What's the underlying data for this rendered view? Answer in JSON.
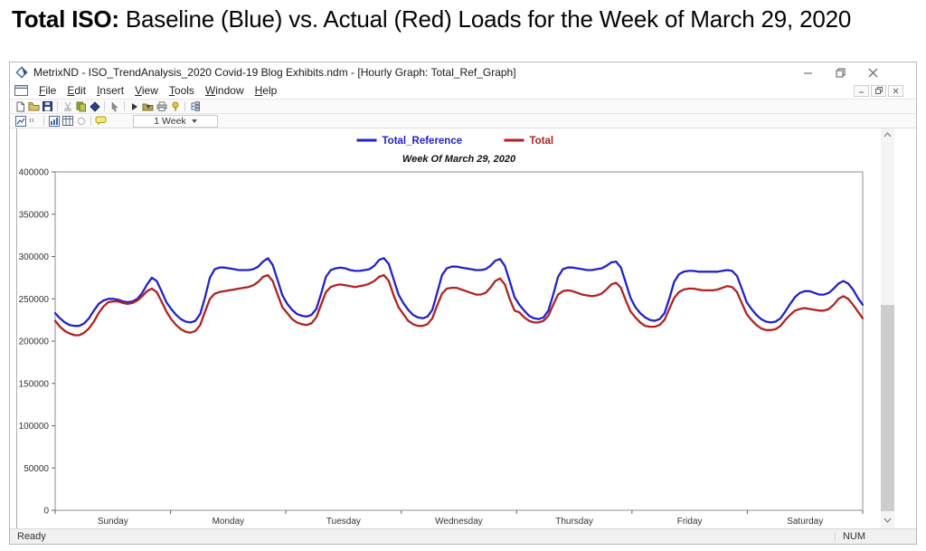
{
  "headline": {
    "bold": "Total ISO:",
    "rest": " Baseline (Blue) vs. Actual (Red) Loads for the Week of March 29, 2020"
  },
  "window": {
    "title": "MetrixND - ISO_TrendAnalysis_2020 Covid-19 Blog Exhibits.ndm - [Hourly Graph: Total_Ref_Graph]",
    "menu": [
      "File",
      "Edit",
      "Insert",
      "View",
      "Tools",
      "Window",
      "Help"
    ],
    "toolbar": {
      "range_value": "1 Week"
    },
    "status": {
      "left": "Ready",
      "right": "NUM"
    }
  },
  "chart_data": {
    "type": "line",
    "title": "Week Of March 29, 2020",
    "xlabel": "",
    "ylabel": "",
    "categories": [
      "Sunday",
      "Monday",
      "Tuesday",
      "Wednesday",
      "Thursday",
      "Friday",
      "Saturday"
    ],
    "hours_per_day": 24,
    "x_unit": "hour",
    "ylim": [
      0,
      400000
    ],
    "yticks": [
      0,
      50000,
      100000,
      150000,
      200000,
      250000,
      300000,
      350000,
      400000
    ],
    "grid": false,
    "legend_position": "top-center",
    "colors": {
      "baseline_blue": "#2222cc",
      "actual_red": "#b22222"
    },
    "series": [
      {
        "name": "Total_Reference",
        "color": "#2222cc",
        "values": [
          233000,
          227000,
          222000,
          219000,
          218000,
          218000,
          221000,
          227000,
          236000,
          244000,
          248000,
          250000,
          250000,
          249000,
          247000,
          246000,
          247000,
          250000,
          257000,
          267000,
          275000,
          271000,
          259000,
          246000,
          238000,
          231000,
          226000,
          223000,
          222000,
          224000,
          232000,
          252000,
          275000,
          285000,
          287000,
          287000,
          286000,
          285000,
          284000,
          284000,
          284000,
          285000,
          288000,
          294000,
          298000,
          290000,
          272000,
          254000,
          244000,
          237000,
          232000,
          230000,
          229000,
          231000,
          238000,
          256000,
          276000,
          284000,
          286000,
          287000,
          286000,
          284000,
          283000,
          283000,
          284000,
          285000,
          289000,
          296000,
          298000,
          291000,
          273000,
          255000,
          245000,
          237000,
          231000,
          228000,
          227000,
          229000,
          237000,
          257000,
          278000,
          286000,
          288000,
          288000,
          287000,
          286000,
          285000,
          284000,
          284000,
          285000,
          289000,
          295000,
          297000,
          289000,
          271000,
          252000,
          243000,
          236000,
          230000,
          227000,
          226000,
          228000,
          236000,
          255000,
          276000,
          285000,
          287000,
          287000,
          286000,
          285000,
          284000,
          284000,
          285000,
          286000,
          289000,
          293000,
          294000,
          287000,
          269000,
          251000,
          240000,
          233000,
          228000,
          225000,
          224000,
          226000,
          233000,
          250000,
          270000,
          279000,
          282000,
          283000,
          283000,
          282000,
          282000,
          282000,
          282000,
          282000,
          283000,
          284000,
          283000,
          277000,
          262000,
          246000,
          238000,
          231000,
          226000,
          223000,
          222000,
          223000,
          227000,
          235000,
          244000,
          252000,
          257000,
          259000,
          259000,
          257000,
          255000,
          255000,
          257000,
          262000,
          268000,
          271000,
          268000,
          261000,
          251000,
          243000
        ]
      },
      {
        "name": "Total",
        "color": "#b22222",
        "values": [
          224000,
          217000,
          212000,
          209000,
          207000,
          207000,
          210000,
          215000,
          223000,
          233000,
          241000,
          246000,
          247000,
          247000,
          245000,
          244000,
          245000,
          248000,
          253000,
          259000,
          262000,
          258000,
          247000,
          235000,
          226000,
          219000,
          214000,
          211000,
          210000,
          212000,
          219000,
          235000,
          250000,
          256000,
          258000,
          259000,
          260000,
          261000,
          262000,
          263000,
          264000,
          266000,
          270000,
          276000,
          278000,
          271000,
          255000,
          240000,
          233000,
          226000,
          222000,
          220000,
          219000,
          221000,
          228000,
          243000,
          258000,
          264000,
          266000,
          267000,
          266000,
          265000,
          264000,
          265000,
          266000,
          268000,
          271000,
          276000,
          278000,
          271000,
          254000,
          240000,
          232000,
          224000,
          220000,
          218000,
          218000,
          220000,
          227000,
          242000,
          256000,
          262000,
          263000,
          263000,
          261000,
          259000,
          257000,
          255000,
          255000,
          257000,
          263000,
          271000,
          274000,
          267000,
          250000,
          236000,
          234000,
          228000,
          224000,
          222000,
          222000,
          224000,
          230000,
          243000,
          255000,
          259000,
          260000,
          259000,
          257000,
          255000,
          254000,
          253000,
          254000,
          256000,
          261000,
          267000,
          269000,
          263000,
          248000,
          235000,
          228000,
          222000,
          218000,
          217000,
          217000,
          219000,
          225000,
          238000,
          251000,
          258000,
          261000,
          262000,
          262000,
          261000,
          260000,
          260000,
          260000,
          261000,
          263000,
          265000,
          264000,
          258000,
          245000,
          232000,
          225000,
          219000,
          215000,
          213000,
          213000,
          214000,
          218000,
          225000,
          231000,
          236000,
          238000,
          239000,
          238000,
          237000,
          236000,
          236000,
          238000,
          243000,
          250000,
          253000,
          250000,
          243000,
          235000,
          227000
        ]
      }
    ]
  }
}
